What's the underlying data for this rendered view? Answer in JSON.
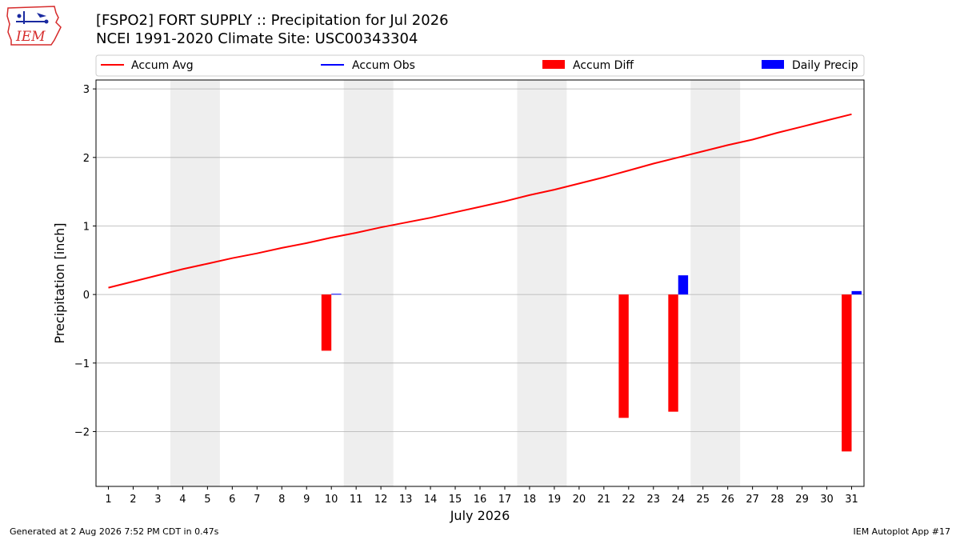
{
  "header": {
    "title_line1": "[FSPO2] FORT SUPPLY :: Precipitation for Jul 2026",
    "title_line2": "NCEI 1991-2020 Climate Site: USC00343304"
  },
  "logo": {
    "text": "IEM",
    "icon": "iowa-state-weather-logo-icon"
  },
  "footer": {
    "generated": "Generated at 2 Aug 2026 7:52 PM CDT in 0.47s",
    "app": "IEM Autoplot App #17"
  },
  "colors": {
    "accum_avg": "#ff0000",
    "accum_obs": "#0000ff",
    "accum_diff": "#ff0000",
    "daily_precip": "#0000ff",
    "weekend_band": "#eeeeee",
    "grid": "#b0b0b0"
  },
  "chart_data": {
    "type": "bar",
    "xlabel": "July 2026",
    "ylabel": "Precipitation [inch]",
    "xlim": [
      0.5,
      31.5
    ],
    "ylim": [
      -2.8,
      3.13
    ],
    "yticks": [
      -2,
      -1,
      0,
      1,
      2,
      3
    ],
    "ytick_labels": [
      "−2",
      "−1",
      "0",
      "1",
      "2",
      "3"
    ],
    "x": [
      1,
      2,
      3,
      4,
      5,
      6,
      7,
      8,
      9,
      10,
      11,
      12,
      13,
      14,
      15,
      16,
      17,
      18,
      19,
      20,
      21,
      22,
      23,
      24,
      25,
      26,
      27,
      28,
      29,
      30,
      31
    ],
    "xtick_labels": [
      "1",
      "2",
      "3",
      "4",
      "5",
      "6",
      "7",
      "8",
      "9",
      "10",
      "11",
      "12",
      "13",
      "14",
      "15",
      "16",
      "17",
      "18",
      "19",
      "20",
      "21",
      "22",
      "23",
      "24",
      "25",
      "26",
      "27",
      "28",
      "29",
      "30",
      "31"
    ],
    "grid": "horizontal",
    "legend_position": "top",
    "weekends": [
      [
        3.5,
        5.5
      ],
      [
        10.5,
        12.5
      ],
      [
        17.5,
        19.5
      ],
      [
        24.5,
        26.5
      ]
    ],
    "series": [
      {
        "name": "Accum Avg",
        "type": "line",
        "values": [
          0.1,
          0.19,
          0.28,
          0.37,
          0.45,
          0.53,
          0.6,
          0.68,
          0.75,
          0.83,
          0.9,
          0.98,
          1.05,
          1.12,
          1.2,
          1.28,
          1.36,
          1.45,
          1.53,
          1.62,
          1.71,
          1.81,
          1.91,
          2.0,
          2.09,
          2.18,
          2.26,
          2.36,
          2.45,
          2.54,
          2.63
        ]
      },
      {
        "name": "Accum Obs",
        "type": "line",
        "values": [
          0,
          0,
          0,
          0,
          0,
          0,
          0,
          0,
          0,
          0.01,
          0.01,
          0.01,
          0.01,
          0.01,
          0.01,
          0.01,
          0.01,
          0.01,
          0.01,
          0.01,
          0.01,
          0.01,
          0.01,
          0.29,
          0.29,
          0.29,
          0.29,
          0.29,
          0.29,
          0.29,
          0.34
        ]
      },
      {
        "name": "Accum Diff",
        "type": "bar",
        "values": [
          null,
          null,
          null,
          null,
          null,
          null,
          null,
          null,
          null,
          -0.82,
          null,
          null,
          null,
          null,
          null,
          null,
          null,
          null,
          null,
          null,
          null,
          -1.8,
          null,
          -1.71,
          null,
          null,
          null,
          null,
          null,
          null,
          -2.29
        ]
      },
      {
        "name": "Daily Precip",
        "type": "bar",
        "values": [
          null,
          null,
          null,
          null,
          null,
          null,
          null,
          null,
          null,
          0.01,
          null,
          null,
          null,
          null,
          null,
          null,
          null,
          null,
          null,
          null,
          null,
          null,
          null,
          0.28,
          null,
          null,
          null,
          null,
          null,
          null,
          0.05
        ]
      }
    ]
  }
}
